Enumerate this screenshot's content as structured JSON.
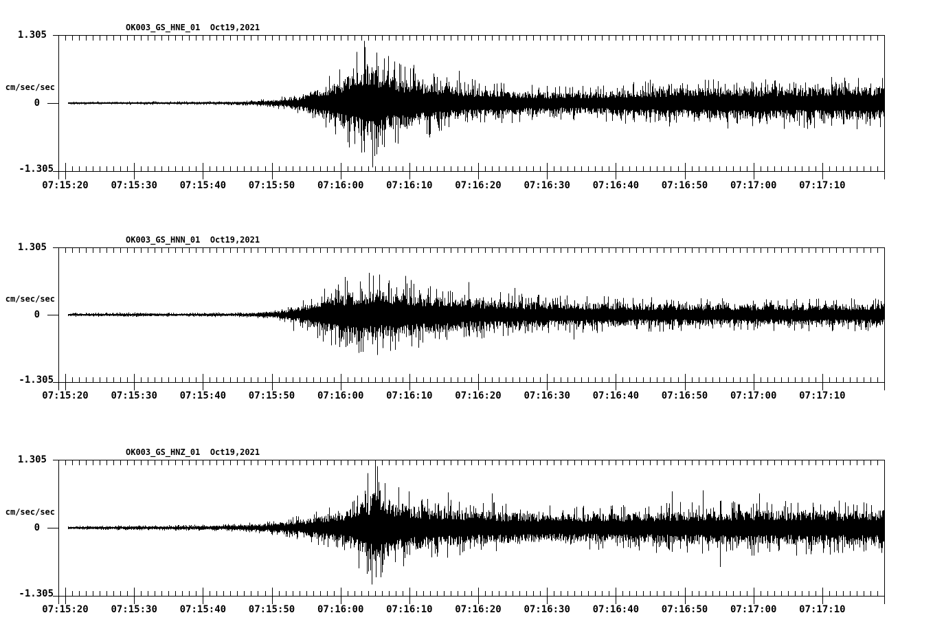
{
  "page": {
    "background": "#ffffff",
    "ink": "#000000"
  },
  "chart_data": {
    "type": "line",
    "subtype": "seismogram-3-component-acceleration",
    "grid": false,
    "legend": "none",
    "ylabel": "cm/sec/sec",
    "ylim": [
      -1.305,
      1.305
    ],
    "y_tick_labels": {
      "top": "1.305",
      "zero": "0",
      "bottom": "-1.305"
    },
    "x_start_time": "07:15:19",
    "x_span_seconds": 120,
    "x_major_tick_seconds": 10,
    "x_minor_tick_seconds": 1,
    "x_tick_labels": [
      "07:15:20",
      "07:15:30",
      "07:15:40",
      "07:15:50",
      "07:16:00",
      "07:16:10",
      "07:16:20",
      "07:16:30",
      "07:16:40",
      "07:16:50",
      "07:17:00",
      "07:17:10"
    ],
    "panels": [
      {
        "id": "hne",
        "title": "OK003_GS_HNE_01  Oct19,2021",
        "station": "OK003",
        "network": "GS",
        "channel": "HNE",
        "location_code": "01",
        "date": "Oct19,2021",
        "envelope_t_amp": [
          [
            1.4,
            0.03
          ],
          [
            6,
            0.032
          ],
          [
            16,
            0.033
          ],
          [
            24,
            0.04
          ],
          [
            28,
            0.055
          ],
          [
            31,
            0.09
          ],
          [
            33,
            0.14
          ],
          [
            35,
            0.22
          ],
          [
            37,
            0.38
          ],
          [
            39,
            0.55
          ],
          [
            41,
            0.68
          ],
          [
            43,
            0.95
          ],
          [
            44.5,
            1.22
          ],
          [
            46,
            1.15
          ],
          [
            47.5,
            0.9
          ],
          [
            49,
            0.8
          ],
          [
            51,
            0.74
          ],
          [
            53,
            0.65
          ],
          [
            55,
            0.55
          ],
          [
            58,
            0.5
          ],
          [
            61,
            0.45
          ],
          [
            64,
            0.4
          ],
          [
            68,
            0.36
          ],
          [
            72,
            0.33
          ],
          [
            76,
            0.33
          ],
          [
            80,
            0.38
          ],
          [
            85,
            0.42
          ],
          [
            90,
            0.46
          ],
          [
            95,
            0.48
          ],
          [
            100,
            0.48
          ],
          [
            105,
            0.5
          ],
          [
            110,
            0.5
          ],
          [
            115,
            0.52
          ],
          [
            120,
            0.52
          ]
        ],
        "peaks_t_amp": [
          [
            44.4,
            1.19
          ],
          [
            45.6,
            -1.23
          ],
          [
            43.3,
            0.98
          ],
          [
            44.0,
            -0.95
          ],
          [
            46.2,
            0.97
          ],
          [
            47.9,
            0.9
          ],
          [
            42.2,
            -0.85
          ],
          [
            49.3,
            -0.78
          ],
          [
            50.3,
            0.7
          ],
          [
            51.6,
            0.73
          ],
          [
            53.9,
            -0.66
          ],
          [
            58.2,
            0.62
          ],
          [
            86.0,
            0.45
          ],
          [
            97.2,
            -0.49
          ]
        ]
      },
      {
        "id": "hnn",
        "title": "OK003_GS_HNN_01  Oct19,2021",
        "station": "OK003",
        "network": "GS",
        "channel": "HNN",
        "location_code": "01",
        "date": "Oct19,2021",
        "envelope_t_amp": [
          [
            1.4,
            0.04
          ],
          [
            8,
            0.042
          ],
          [
            12,
            0.05
          ],
          [
            16,
            0.042
          ],
          [
            20,
            0.042
          ],
          [
            26,
            0.05
          ],
          [
            29,
            0.07
          ],
          [
            32,
            0.11
          ],
          [
            34,
            0.18
          ],
          [
            36,
            0.32
          ],
          [
            38,
            0.5
          ],
          [
            40,
            0.62
          ],
          [
            42,
            0.7
          ],
          [
            44,
            0.78
          ],
          [
            46,
            0.8
          ],
          [
            48,
            0.74
          ],
          [
            50,
            0.72
          ],
          [
            52,
            0.66
          ],
          [
            54,
            0.58
          ],
          [
            57,
            0.52
          ],
          [
            60,
            0.48
          ],
          [
            63,
            0.45
          ],
          [
            67,
            0.42
          ],
          [
            71,
            0.4
          ],
          [
            75,
            0.38
          ],
          [
            80,
            0.36
          ],
          [
            85,
            0.34
          ],
          [
            90,
            0.34
          ],
          [
            95,
            0.32
          ],
          [
            100,
            0.32
          ],
          [
            105,
            0.32
          ],
          [
            110,
            0.33
          ],
          [
            115,
            0.33
          ],
          [
            120,
            0.35
          ]
        ],
        "peaks_t_amp": [
          [
            45.1,
            0.81
          ],
          [
            44.2,
            -0.72
          ],
          [
            46.6,
            0.78
          ],
          [
            41.6,
            0.73
          ],
          [
            50.4,
            0.75
          ],
          [
            48.9,
            -0.68
          ],
          [
            52.3,
            -0.64
          ],
          [
            59.6,
            0.63
          ],
          [
            34.1,
            -0.31
          ],
          [
            66.3,
            0.52
          ],
          [
            74.9,
            -0.48
          ]
        ]
      },
      {
        "id": "hnz",
        "title": "OK003_GS_HNZ_01  Oct19,2021",
        "station": "OK003",
        "network": "GS",
        "channel": "HNZ",
        "location_code": "01",
        "date": "Oct19,2021",
        "envelope_t_amp": [
          [
            1.4,
            0.042
          ],
          [
            8,
            0.045
          ],
          [
            16,
            0.055
          ],
          [
            22,
            0.065
          ],
          [
            26,
            0.08
          ],
          [
            29,
            0.11
          ],
          [
            32,
            0.16
          ],
          [
            35,
            0.24
          ],
          [
            38,
            0.34
          ],
          [
            41,
            0.48
          ],
          [
            43,
            0.62
          ],
          [
            45,
            0.92
          ],
          [
            46.2,
            1.28
          ],
          [
            47.5,
            1.0
          ],
          [
            49,
            0.8
          ],
          [
            51,
            0.7
          ],
          [
            53,
            0.64
          ],
          [
            56,
            0.6
          ],
          [
            59,
            0.55
          ],
          [
            62,
            0.5
          ],
          [
            66,
            0.47
          ],
          [
            70,
            0.44
          ],
          [
            75,
            0.42
          ],
          [
            80,
            0.44
          ],
          [
            85,
            0.47
          ],
          [
            90,
            0.5
          ],
          [
            95,
            0.52
          ],
          [
            100,
            0.55
          ],
          [
            105,
            0.52
          ],
          [
            110,
            0.55
          ],
          [
            115,
            0.52
          ],
          [
            120,
            0.55
          ]
        ],
        "peaks_t_amp": [
          [
            46.0,
            1.3
          ],
          [
            46.3,
            1.18
          ],
          [
            45.5,
            -1.09
          ],
          [
            44.9,
            1.05
          ],
          [
            46.8,
            -0.95
          ],
          [
            47.4,
            0.86
          ],
          [
            43.6,
            -0.78
          ],
          [
            56.6,
            0.68
          ],
          [
            63.0,
            0.66
          ],
          [
            89.2,
            0.7
          ],
          [
            93.6,
            0.72
          ],
          [
            96.1,
            -0.75
          ],
          [
            101.8,
            0.66
          ]
        ]
      }
    ]
  }
}
